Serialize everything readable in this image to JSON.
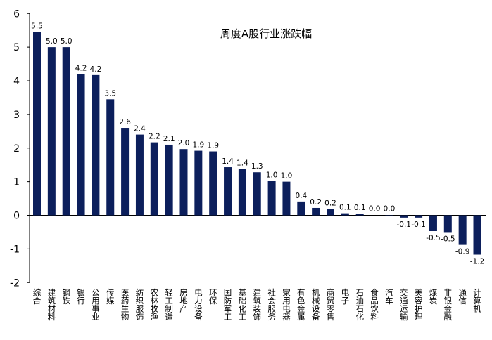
{
  "chart_data": {
    "type": "bar",
    "title": "周度A股行业涨跌幅",
    "xlabel": "",
    "ylabel": "",
    "ylim": [
      -2,
      6
    ],
    "yticks": [
      6,
      5,
      4,
      3,
      2,
      1,
      0,
      -1,
      -2
    ],
    "grid": false,
    "bar_color": "#0c1f5c",
    "categories": [
      "综合",
      "建筑材料",
      "钢铁",
      "银行",
      "公用事业",
      "传媒",
      "医药生物",
      "纺织服饰",
      "农林牧渔",
      "轻工制造",
      "房地产",
      "电力设备",
      "环保",
      "国防军工",
      "基础化工",
      "建筑装饰",
      "社会服务",
      "家用电器",
      "有色金属",
      "机械设备",
      "商贸零售",
      "电子",
      "石油石化",
      "食品饮料",
      "汽车",
      "交通运输",
      "美容护理",
      "煤炭",
      "非银金融",
      "通信",
      "计算机"
    ],
    "values": [
      5.45,
      5.0,
      5.0,
      4.2,
      4.17,
      3.45,
      2.6,
      2.4,
      2.17,
      2.1,
      1.97,
      1.92,
      1.9,
      1.43,
      1.38,
      1.28,
      1.02,
      1.0,
      0.41,
      0.22,
      0.19,
      0.06,
      0.05,
      0.0,
      -0.01,
      -0.07,
      -0.07,
      -0.47,
      -0.5,
      -0.88,
      -1.17
    ],
    "value_labels": [
      "5.5",
      "5.0",
      "5.0",
      "4.2",
      "4.2",
      "3.5",
      "2.6",
      "2.4",
      "2.2",
      "2.1",
      "2.0",
      "1.9",
      "1.9",
      "1.4",
      "1.4",
      "1.3",
      "1.0",
      "1.0",
      "0.4",
      "0.2",
      "0.2",
      "0.1",
      "0.1",
      "0.0",
      "0.0",
      "-0.1",
      "-0.1",
      "-0.5",
      "-0.5",
      "-0.9",
      "-1.2"
    ]
  }
}
